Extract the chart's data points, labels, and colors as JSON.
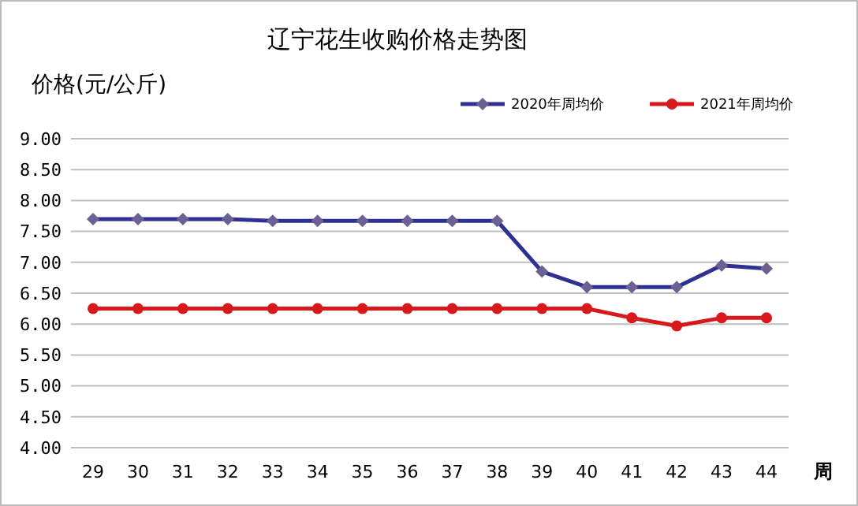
{
  "chart_data": {
    "type": "line",
    "title": "辽宁花生收购价格走势图",
    "ylabel": "价格(元/公斤)",
    "xlabel": "周",
    "categories": [
      "29",
      "30",
      "31",
      "32",
      "33",
      "34",
      "35",
      "36",
      "37",
      "38",
      "39",
      "40",
      "41",
      "42",
      "43",
      "44"
    ],
    "series": [
      {
        "name": "2020年周均价",
        "color": "#2e3192",
        "marker": "diamond",
        "values": [
          7.7,
          7.7,
          7.7,
          7.7,
          7.67,
          7.67,
          7.67,
          7.67,
          7.67,
          7.67,
          6.85,
          6.6,
          6.6,
          6.6,
          6.95,
          6.9
        ]
      },
      {
        "name": "2021年周均价",
        "color": "#d7191c",
        "marker": "circle",
        "values": [
          6.25,
          6.25,
          6.25,
          6.25,
          6.25,
          6.25,
          6.25,
          6.25,
          6.25,
          6.25,
          6.25,
          6.25,
          6.1,
          5.97,
          6.1,
          6.1
        ]
      }
    ],
    "ylim": [
      4,
      9
    ],
    "yticks": [
      {
        "value": 4,
        "label": "4.00"
      },
      {
        "value": 4.5,
        "label": "4.50"
      },
      {
        "value": 5,
        "label": "5.00"
      },
      {
        "value": 5.5,
        "label": "5.50"
      },
      {
        "value": 6,
        "label": "6.00"
      },
      {
        "value": 6.5,
        "label": "6.50"
      },
      {
        "value": 7,
        "label": "7.00"
      },
      {
        "value": 7.5,
        "label": "7.50"
      },
      {
        "value": 8,
        "label": "8.00"
      },
      {
        "value": 8.5,
        "label": "8.50"
      },
      {
        "value": 9,
        "label": "9.00"
      }
    ],
    "grid": "y",
    "legend": "top right",
    "line_style": "solid"
  }
}
